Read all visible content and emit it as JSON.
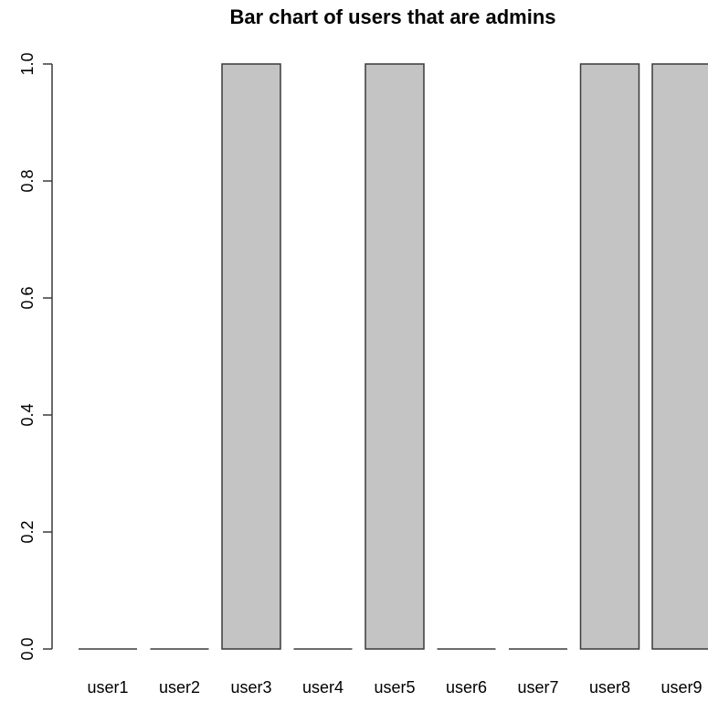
{
  "chart_data": {
    "type": "bar",
    "title": "Bar chart of users that are admins",
    "xlabel": "",
    "ylabel": "",
    "categories": [
      "user1",
      "user2",
      "user3",
      "user4",
      "user5",
      "user6",
      "user7",
      "user8",
      "user9"
    ],
    "values": [
      0,
      0,
      1,
      0,
      1,
      0,
      0,
      1,
      1
    ],
    "ylim": [
      0,
      1
    ],
    "yticks": [
      "0.0",
      "0.2",
      "0.4",
      "0.6",
      "0.8",
      "1.0"
    ],
    "grid": false,
    "colors": {
      "bar_fill": "#c4c4c4",
      "bar_stroke": "#3a3a3a",
      "axis": "#3a3a3a"
    }
  }
}
